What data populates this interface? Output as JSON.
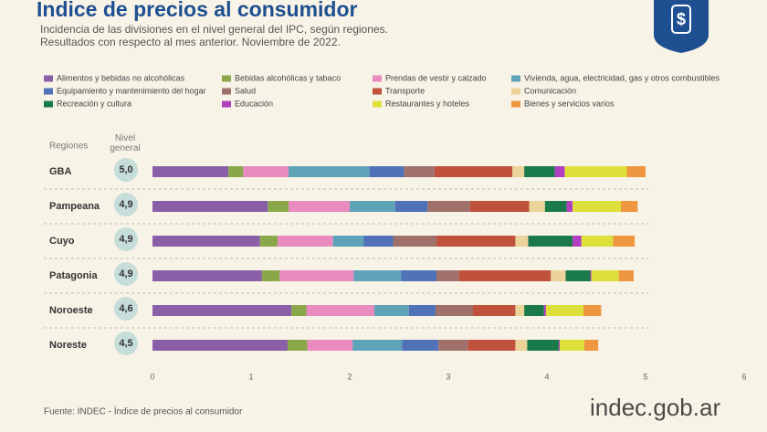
{
  "chart_data": {
    "type": "stacked-bar",
    "title": "Indice de precios al consumidor",
    "subtitle": [
      "Incidencia de las divisiones en el nivel general del IPC, según regiones.",
      "Resultados con respecto al mes anterior. Noviembre de 2022."
    ],
    "category_header": "Regiones",
    "level_header": "Nivel general",
    "categories": [
      "GBA",
      "Pampeana",
      "Cuyo",
      "Patagonia",
      "Noroeste",
      "Noreste"
    ],
    "nivel_general": [
      {
        "value": 5.0,
        "label": "5,0"
      },
      {
        "value": 4.9,
        "label": "4,9"
      },
      {
        "value": 4.9,
        "label": "4,9"
      },
      {
        "value": 4.9,
        "label": "4,9"
      },
      {
        "value": 4.6,
        "label": "4,6"
      },
      {
        "value": 4.5,
        "label": "4,5"
      }
    ],
    "series": [
      {
        "name": "Alimentos y bebidas no alcohólicas",
        "color": "#8a5fa8",
        "values": [
          0.77,
          1.17,
          1.09,
          1.11,
          1.41,
          1.37
        ]
      },
      {
        "name": "Bebidas alcohólicas y tabaco",
        "color": "#8aa84a",
        "values": [
          0.15,
          0.21,
          0.18,
          0.18,
          0.15,
          0.2
        ]
      },
      {
        "name": "Prendas de vestir y calzado",
        "color": "#e98bbf",
        "values": [
          0.46,
          0.62,
          0.56,
          0.75,
          0.69,
          0.46
        ]
      },
      {
        "name": "Vivienda, agua, electricidad, gas y otros combustibles",
        "color": "#5fa3b8",
        "values": [
          0.82,
          0.46,
          0.31,
          0.48,
          0.35,
          0.5
        ]
      },
      {
        "name": "Equipamiento y mantenimiento del hogar",
        "color": "#4f72b8",
        "values": [
          0.35,
          0.33,
          0.3,
          0.36,
          0.27,
          0.37
        ]
      },
      {
        "name": "Salud",
        "color": "#a0706a",
        "values": [
          0.31,
          0.43,
          0.44,
          0.23,
          0.38,
          0.3
        ]
      },
      {
        "name": "Transporte",
        "color": "#c0513d",
        "values": [
          0.79,
          0.6,
          0.8,
          0.93,
          0.43,
          0.48
        ]
      },
      {
        "name": "Comunicación",
        "color": "#ecd39a",
        "values": [
          0.12,
          0.16,
          0.13,
          0.15,
          0.09,
          0.12
        ]
      },
      {
        "name": "Recreación y cultura",
        "color": "#1b7a4a",
        "values": [
          0.31,
          0.22,
          0.45,
          0.25,
          0.2,
          0.32
        ]
      },
      {
        "name": "Educación",
        "color": "#b13fbf",
        "values": [
          0.1,
          0.06,
          0.09,
          0.01,
          0.02,
          0.01
        ]
      },
      {
        "name": "Restaurantes y hoteles",
        "color": "#dde03a",
        "values": [
          0.63,
          0.49,
          0.32,
          0.28,
          0.38,
          0.25
        ]
      },
      {
        "name": "Bienes y servicios varios",
        "color": "#ee9640",
        "values": [
          0.19,
          0.17,
          0.22,
          0.15,
          0.18,
          0.14
        ]
      }
    ],
    "xlim": [
      0,
      6
    ],
    "xticks": [
      0,
      1,
      2,
      3,
      4,
      5,
      6
    ],
    "source": "Fuente: INDEC - Índice de precios al consumidor",
    "brand": "indec.gob.ar"
  }
}
